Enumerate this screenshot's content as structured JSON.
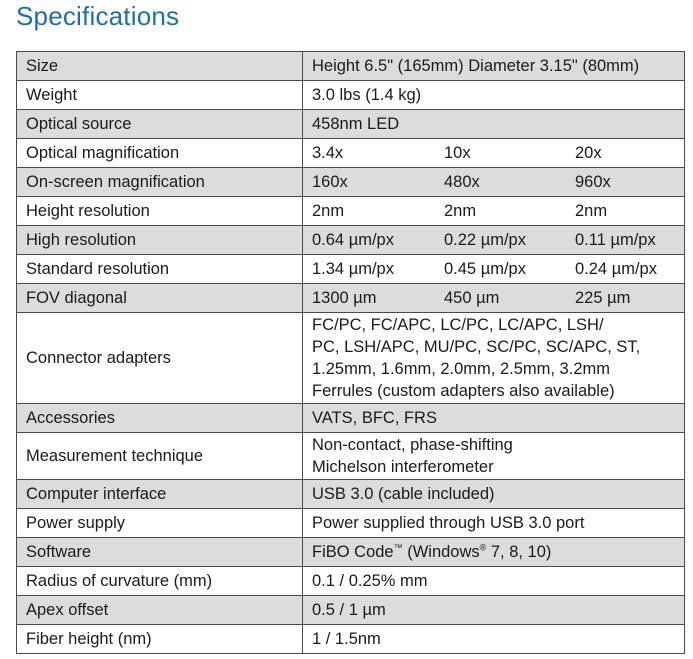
{
  "title": "Specifications",
  "rows": [
    {
      "label": "Size",
      "value": "Height 6.5\" (165mm) Diameter 3.15\" (80mm)"
    },
    {
      "label": "Weight",
      "value": "3.0 lbs (1.4 kg)"
    },
    {
      "label": "Optical source",
      "value": "458nm LED"
    },
    {
      "label": "Optical magnification",
      "cols": [
        "3.4x",
        "10x",
        "20x"
      ]
    },
    {
      "label": "On-screen magnification",
      "cols": [
        "160x",
        "480x",
        "960x"
      ]
    },
    {
      "label": "Height resolution",
      "cols": [
        "2nm",
        "2nm",
        "2nm"
      ]
    },
    {
      "label": "High resolution",
      "cols": [
        "0.64 µm/px",
        "0.22 µm/px",
        "0.11 µm/px"
      ]
    },
    {
      "label": "Standard resolution",
      "cols": [
        "1.34 µm/px",
        "0.45 µm/px",
        "0.24 µm/px"
      ]
    },
    {
      "label": "FOV diagonal",
      "cols": [
        "1300 µm",
        "450 µm",
        "225 µm"
      ]
    },
    {
      "label": "Connector adapters",
      "lines": [
        "FC/PC, FC/APC, LC/PC, LC/APC, LSH/",
        "PC, LSH/APC, MU/PC, SC/PC, SC/APC, ST,",
        "1.25mm, 1.6mm, 2.0mm, 2.5mm, 3.2mm",
        "Ferrules (custom adapters also available)"
      ]
    },
    {
      "label": "Accessories",
      "value": "VATS, BFC, FRS"
    },
    {
      "label": "Measurement technique",
      "lines": [
        "Non-contact, phase-shifting",
        "Michelson interferometer"
      ]
    },
    {
      "label": "Computer interface",
      "value": "USB 3.0 (cable included)"
    },
    {
      "label": "Power supply",
      "value": "Power supplied through USB 3.0 port"
    },
    {
      "label": "Software",
      "software": {
        "name": "FiBO Code",
        "tm": "™",
        "os": " (Windows",
        "reg": "®",
        "versions": " 7, 8, 10)"
      }
    },
    {
      "label": "Radius of curvature (mm)",
      "value": "0.1 / 0.25% mm"
    },
    {
      "label": "Apex offset",
      "value": "0.5 / 1 µm"
    },
    {
      "label": "Fiber height (nm)",
      "value": "1 / 1.5nm"
    }
  ]
}
